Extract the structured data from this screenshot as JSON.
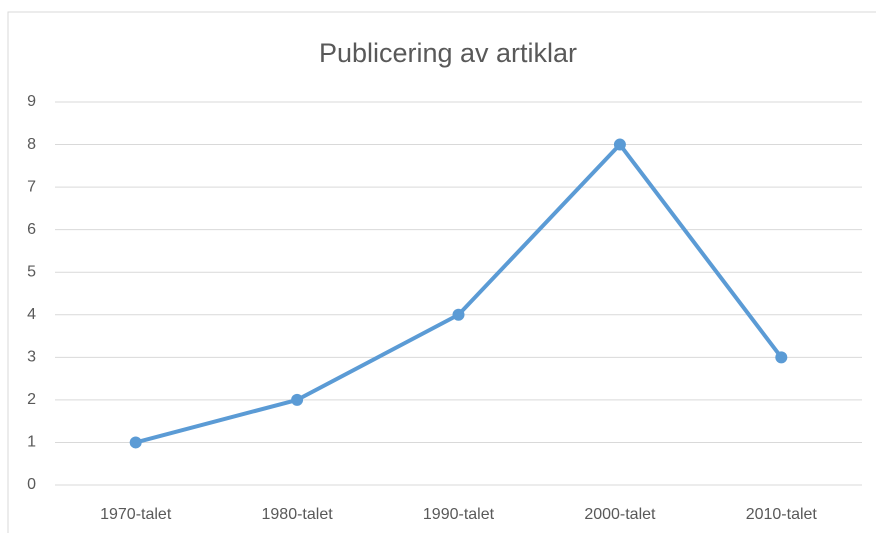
{
  "chart_data": {
    "type": "line",
    "title": "Publicering av artiklar",
    "categories": [
      "1970-talet",
      "1980-talet",
      "1990-talet",
      "2000-talet",
      "2010-talet"
    ],
    "values": [
      1,
      2,
      4,
      8,
      3
    ],
    "color": "#5b9bd5",
    "ylim": [
      0,
      9
    ],
    "yticks": [
      0,
      1,
      2,
      3,
      4,
      5,
      6,
      7,
      8,
      9
    ],
    "grid": true
  }
}
